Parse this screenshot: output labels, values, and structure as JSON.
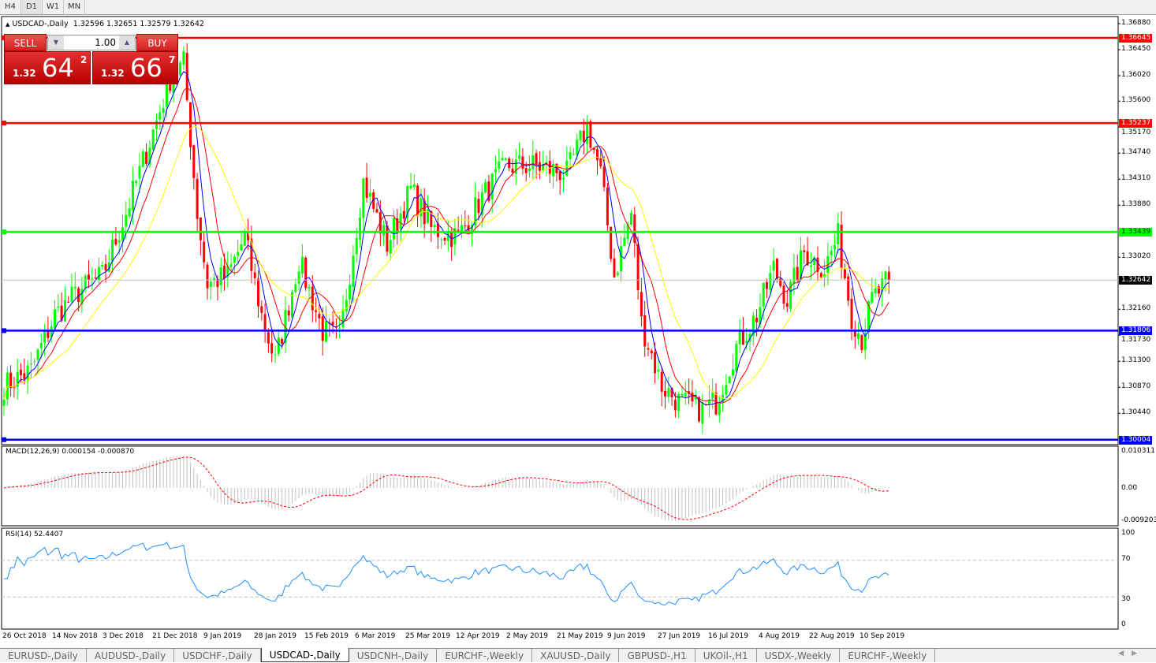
{
  "timeframes": [
    "H4",
    "D1",
    "W1",
    "MN"
  ],
  "active_timeframe": "D1",
  "symbol_header": {
    "arrow": "▲",
    "title": "USDCAD-,Daily",
    "ohlc": "1.32596 1.32651 1.32579 1.32642"
  },
  "trade_panel": {
    "sell_label": "SELL",
    "buy_label": "BUY",
    "lot": "1.00",
    "sell_small": "1.32",
    "sell_big": "64",
    "sell_pip": "2",
    "buy_small": "1.32",
    "buy_big": "66",
    "buy_pip": "7"
  },
  "price_axis": [
    "1.36880",
    "1.36450",
    "1.36020",
    "1.35600",
    "1.35170",
    "1.34740",
    "1.34310",
    "1.33880",
    "1.33020",
    "1.32160",
    "1.31730",
    "1.31300",
    "1.30870",
    "1.30440"
  ],
  "levels": [
    {
      "price": "1.36645",
      "color": "#ff0000"
    },
    {
      "price": "1.35237",
      "color": "#ff0000"
    },
    {
      "price": "1.33439",
      "color": "#00ff00"
    },
    {
      "price": "1.31806",
      "color": "#0000ff"
    },
    {
      "price": "1.30004",
      "color": "#0000ff"
    }
  ],
  "current_price": "1.32642",
  "date_axis": [
    "26 Oct 2018",
    "14 Nov 2018",
    "3 Dec 2018",
    "21 Dec 2018",
    "9 Jan 2019",
    "28 Jan 2019",
    "15 Feb 2019",
    "6 Mar 2019",
    "25 Mar 2019",
    "12 Apr 2019",
    "2 May 2019",
    "21 May 2019",
    "9 Jun 2019",
    "27 Jun 2019",
    "16 Jul 2019",
    "4 Aug 2019",
    "22 Aug 2019",
    "10 Sep 2019"
  ],
  "macd": {
    "label": "MACD(12,26,9) 0.000154 -0.000870",
    "axis": [
      "0.010311",
      "0.00",
      "-0.009203"
    ]
  },
  "rsi": {
    "label": "RSI(14) 52.4407",
    "axis": [
      "100",
      "70",
      "30",
      "0"
    ]
  },
  "tabs": [
    "EURUSD-,Daily",
    "AUDUSD-,Daily",
    "USDCHF-,Daily",
    "USDCAD-,Daily",
    "USDCNH-,Daily",
    "EURCHF-,Weekly",
    "XAUUSD-,Daily",
    "GBPUSD-,H1",
    "UKOil-,H1",
    "USDX-,Weekly",
    "EURCHF-,Weekly"
  ],
  "active_tab": "USDCAD-,Daily",
  "colors": {
    "bull": "#00ff00",
    "bear": "#ff0000",
    "ma_fast": "#0000ff",
    "ma_mid": "#ff0000",
    "ma_slow": "#ffff00",
    "macd_hist": "#c0c0c0",
    "macd_signal": "#ff0000",
    "rsi": "#1e90ff"
  },
  "chart_data": {
    "type": "candlestick",
    "title": "USDCAD-,Daily",
    "ylim": [
      1.30004,
      1.3688
    ],
    "approx_close_path": [
      [
        0,
        1.3089
      ],
      [
        8,
        1.3115
      ],
      [
        15,
        1.3206
      ],
      [
        22,
        1.3245
      ],
      [
        29,
        1.3271
      ],
      [
        36,
        1.3375
      ],
      [
        43,
        1.3493
      ],
      [
        49,
        1.3597
      ],
      [
        53,
        1.3623
      ],
      [
        57,
        1.3375
      ],
      [
        60,
        1.3258
      ],
      [
        66,
        1.3271
      ],
      [
        71,
        1.3336
      ],
      [
        76,
        1.3206
      ],
      [
        80,
        1.3128
      ],
      [
        87,
        1.3297
      ],
      [
        94,
        1.318
      ],
      [
        99,
        1.3167
      ],
      [
        106,
        1.3427
      ],
      [
        113,
        1.3323
      ],
      [
        120,
        1.3414
      ],
      [
        126,
        1.3349
      ],
      [
        134,
        1.3336
      ],
      [
        141,
        1.3401
      ],
      [
        148,
        1.3453
      ],
      [
        157,
        1.3453
      ],
      [
        166,
        1.344
      ],
      [
        172,
        1.3519
      ],
      [
        176,
        1.344
      ],
      [
        180,
        1.3271
      ],
      [
        185,
        1.3375
      ],
      [
        188,
        1.3193
      ],
      [
        194,
        1.3089
      ],
      [
        199,
        1.3063
      ],
      [
        206,
        1.305
      ],
      [
        210,
        1.3063
      ],
      [
        216,
        1.3154
      ],
      [
        222,
        1.3206
      ],
      [
        227,
        1.3284
      ],
      [
        231,
        1.3232
      ],
      [
        236,
        1.331
      ],
      [
        242,
        1.3284
      ],
      [
        246,
        1.3336
      ],
      [
        250,
        1.3206
      ],
      [
        253,
        1.3167
      ],
      [
        256,
        1.3232
      ],
      [
        261,
        1.3264
      ]
    ]
  }
}
